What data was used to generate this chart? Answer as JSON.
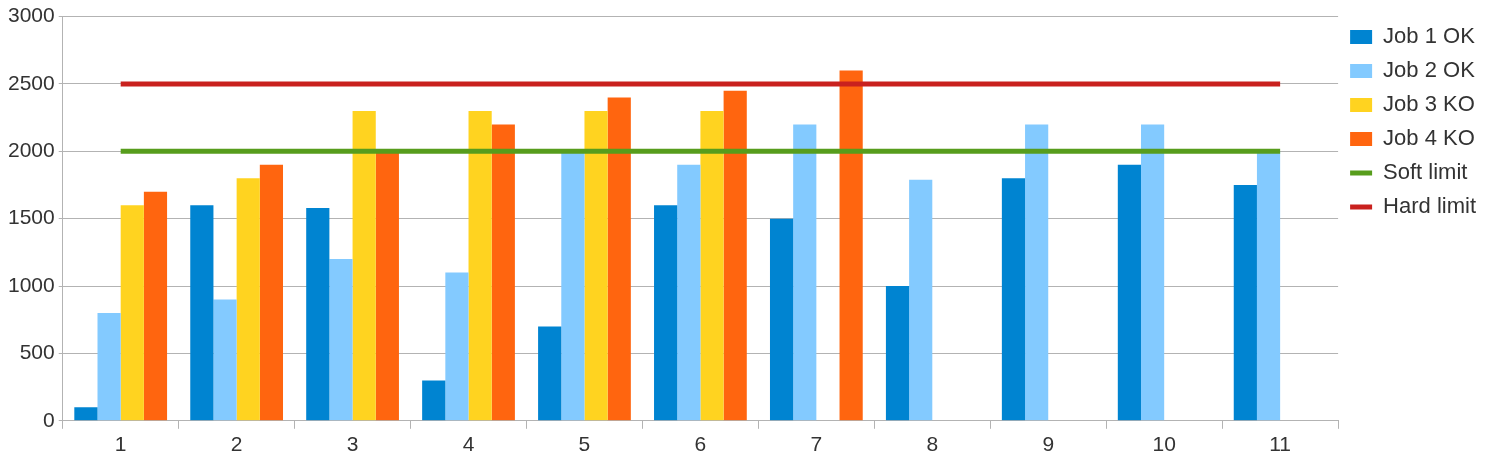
{
  "chart_data": {
    "type": "bar",
    "categories": [
      "1",
      "2",
      "3",
      "4",
      "5",
      "6",
      "7",
      "8",
      "9",
      "10",
      "11"
    ],
    "series": [
      {
        "name": "Job 1 OK",
        "color": "#0084d1",
        "values": [
          100,
          1600,
          1580,
          300,
          700,
          1600,
          1500,
          1000,
          1800,
          1900,
          1750
        ]
      },
      {
        "name": "Job 2 OK",
        "color": "#83caff",
        "values": [
          800,
          900,
          1200,
          1100,
          2000,
          1900,
          2200,
          1790,
          2200,
          2200,
          2000
        ]
      },
      {
        "name": "Job 3 KO",
        "color": "#ffd320",
        "values": [
          1600,
          1800,
          2300,
          2300,
          2300,
          2300,
          null,
          null,
          null,
          null,
          null
        ]
      },
      {
        "name": "Job 4 KO",
        "color": "#ff650f",
        "values": [
          1700,
          1900,
          2000,
          2200,
          2400,
          2450,
          2600,
          null,
          null,
          null,
          null
        ]
      }
    ],
    "ref_lines": [
      {
        "axis": "y",
        "value": 2000,
        "label": "Soft limit",
        "color": "#579d1c"
      },
      {
        "axis": "y",
        "value": 2500,
        "label": "Hard limit",
        "color": "#c9211e"
      }
    ],
    "ylim": [
      0,
      3000
    ],
    "yticks": [
      0,
      500,
      1000,
      1500,
      2000,
      2500,
      3000
    ],
    "grid": "y",
    "legend": "right"
  }
}
